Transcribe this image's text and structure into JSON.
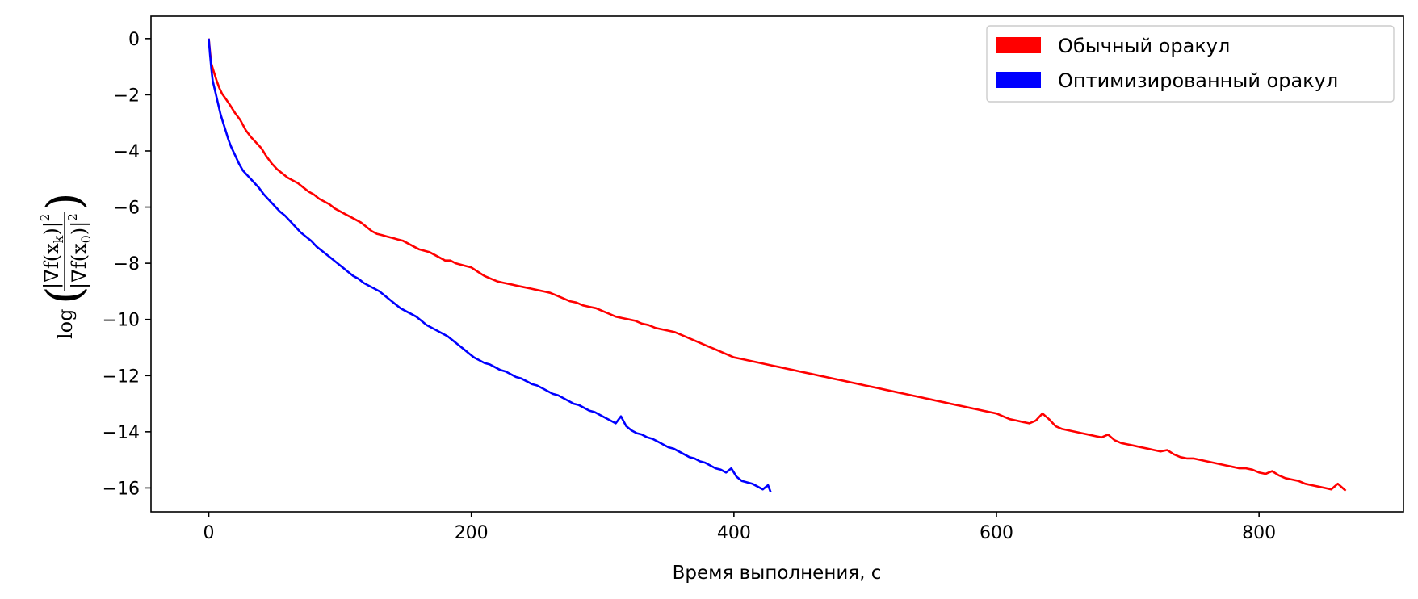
{
  "chart_data": {
    "type": "line",
    "xlabel": "Время выполнения, с",
    "ylabel": "log(|∇f(x_k)|² / |∇f(x_0)|²)",
    "ylabel_parts": {
      "log": "log",
      "numerator": "|∇f(x",
      "numerator_sub": "k",
      "numerator_end": ")|",
      "denominator": "|∇f(x",
      "denominator_sub": "0",
      "denominator_end": ")|",
      "power": "2"
    },
    "xlim": [
      -44,
      910
    ],
    "ylim": [
      -16.85,
      0.8
    ],
    "x_ticks": [
      0,
      200,
      400,
      600,
      800
    ],
    "x_tick_labels": [
      "0",
      "200",
      "400",
      "600",
      "800"
    ],
    "y_ticks": [
      0,
      -2,
      -4,
      -6,
      -8,
      -10,
      -12,
      -14,
      -16
    ],
    "y_tick_labels": [
      "0",
      "−2",
      "−4",
      "−6",
      "−8",
      "−10",
      "−12",
      "−14",
      "−16"
    ],
    "grid": false,
    "legend_position": "top-right",
    "series": [
      {
        "name": "Обычный оракул",
        "color": "#ff0000",
        "points": [
          [
            0,
            0
          ],
          [
            1,
            -0.5
          ],
          [
            2,
            -0.9
          ],
          [
            4,
            -1.2
          ],
          [
            6,
            -1.5
          ],
          [
            8,
            -1.75
          ],
          [
            10,
            -1.95
          ],
          [
            13,
            -2.15
          ],
          [
            16,
            -2.35
          ],
          [
            20,
            -2.65
          ],
          [
            24,
            -2.9
          ],
          [
            28,
            -3.25
          ],
          [
            32,
            -3.5
          ],
          [
            36,
            -3.7
          ],
          [
            40,
            -3.9
          ],
          [
            44,
            -4.2
          ],
          [
            48,
            -4.45
          ],
          [
            52,
            -4.65
          ],
          [
            56,
            -4.8
          ],
          [
            60,
            -4.95
          ],
          [
            64,
            -5.05
          ],
          [
            68,
            -5.15
          ],
          [
            72,
            -5.3
          ],
          [
            76,
            -5.45
          ],
          [
            80,
            -5.55
          ],
          [
            84,
            -5.7
          ],
          [
            88,
            -5.8
          ],
          [
            92,
            -5.9
          ],
          [
            96,
            -6.05
          ],
          [
            100,
            -6.15
          ],
          [
            104,
            -6.25
          ],
          [
            108,
            -6.35
          ],
          [
            112,
            -6.45
          ],
          [
            116,
            -6.55
          ],
          [
            120,
            -6.7
          ],
          [
            124,
            -6.85
          ],
          [
            128,
            -6.95
          ],
          [
            132,
            -7.0
          ],
          [
            136,
            -7.05
          ],
          [
            140,
            -7.1
          ],
          [
            144,
            -7.15
          ],
          [
            148,
            -7.2
          ],
          [
            152,
            -7.3
          ],
          [
            156,
            -7.4
          ],
          [
            160,
            -7.5
          ],
          [
            164,
            -7.55
          ],
          [
            168,
            -7.6
          ],
          [
            172,
            -7.7
          ],
          [
            176,
            -7.8
          ],
          [
            180,
            -7.9
          ],
          [
            184,
            -7.9
          ],
          [
            188,
            -8.0
          ],
          [
            192,
            -8.05
          ],
          [
            196,
            -8.1
          ],
          [
            200,
            -8.15
          ],
          [
            205,
            -8.3
          ],
          [
            210,
            -8.45
          ],
          [
            215,
            -8.55
          ],
          [
            220,
            -8.65
          ],
          [
            225,
            -8.7
          ],
          [
            230,
            -8.75
          ],
          [
            235,
            -8.8
          ],
          [
            240,
            -8.85
          ],
          [
            245,
            -8.9
          ],
          [
            250,
            -8.95
          ],
          [
            255,
            -9.0
          ],
          [
            260,
            -9.05
          ],
          [
            265,
            -9.15
          ],
          [
            270,
            -9.25
          ],
          [
            275,
            -9.35
          ],
          [
            280,
            -9.4
          ],
          [
            285,
            -9.5
          ],
          [
            290,
            -9.55
          ],
          [
            295,
            -9.6
          ],
          [
            300,
            -9.7
          ],
          [
            305,
            -9.8
          ],
          [
            310,
            -9.9
          ],
          [
            315,
            -9.95
          ],
          [
            320,
            -10.0
          ],
          [
            325,
            -10.05
          ],
          [
            330,
            -10.15
          ],
          [
            335,
            -10.2
          ],
          [
            340,
            -10.3
          ],
          [
            345,
            -10.35
          ],
          [
            350,
            -10.4
          ],
          [
            355,
            -10.45
          ],
          [
            360,
            -10.55
          ],
          [
            365,
            -10.65
          ],
          [
            370,
            -10.75
          ],
          [
            375,
            -10.85
          ],
          [
            380,
            -10.95
          ],
          [
            385,
            -11.05
          ],
          [
            390,
            -11.15
          ],
          [
            395,
            -11.25
          ],
          [
            400,
            -11.35
          ],
          [
            405,
            -11.4
          ],
          [
            410,
            -11.45
          ],
          [
            415,
            -11.5
          ],
          [
            420,
            -11.55
          ],
          [
            425,
            -11.6
          ],
          [
            430,
            -11.65
          ],
          [
            435,
            -11.7
          ],
          [
            440,
            -11.75
          ],
          [
            445,
            -11.8
          ],
          [
            450,
            -11.85
          ],
          [
            455,
            -11.9
          ],
          [
            460,
            -11.95
          ],
          [
            465,
            -12.0
          ],
          [
            470,
            -12.05
          ],
          [
            475,
            -12.1
          ],
          [
            480,
            -12.15
          ],
          [
            485,
            -12.2
          ],
          [
            490,
            -12.25
          ],
          [
            495,
            -12.3
          ],
          [
            500,
            -12.35
          ],
          [
            505,
            -12.4
          ],
          [
            510,
            -12.45
          ],
          [
            515,
            -12.5
          ],
          [
            520,
            -12.55
          ],
          [
            525,
            -12.6
          ],
          [
            530,
            -12.65
          ],
          [
            535,
            -12.7
          ],
          [
            540,
            -12.75
          ],
          [
            545,
            -12.8
          ],
          [
            550,
            -12.85
          ],
          [
            555,
            -12.9
          ],
          [
            560,
            -12.95
          ],
          [
            565,
            -13.0
          ],
          [
            570,
            -13.05
          ],
          [
            575,
            -13.1
          ],
          [
            580,
            -13.15
          ],
          [
            585,
            -13.2
          ],
          [
            590,
            -13.25
          ],
          [
            595,
            -13.3
          ],
          [
            600,
            -13.35
          ],
          [
            605,
            -13.45
          ],
          [
            610,
            -13.55
          ],
          [
            615,
            -13.6
          ],
          [
            620,
            -13.65
          ],
          [
            625,
            -13.7
          ],
          [
            630,
            -13.6
          ],
          [
            635,
            -13.35
          ],
          [
            640,
            -13.55
          ],
          [
            645,
            -13.8
          ],
          [
            650,
            -13.9
          ],
          [
            655,
            -13.95
          ],
          [
            660,
            -14.0
          ],
          [
            665,
            -14.05
          ],
          [
            670,
            -14.1
          ],
          [
            675,
            -14.15
          ],
          [
            680,
            -14.2
          ],
          [
            685,
            -14.1
          ],
          [
            690,
            -14.3
          ],
          [
            695,
            -14.4
          ],
          [
            700,
            -14.45
          ],
          [
            705,
            -14.5
          ],
          [
            710,
            -14.55
          ],
          [
            715,
            -14.6
          ],
          [
            720,
            -14.65
          ],
          [
            725,
            -14.7
          ],
          [
            730,
            -14.65
          ],
          [
            735,
            -14.8
          ],
          [
            740,
            -14.9
          ],
          [
            745,
            -14.95
          ],
          [
            750,
            -14.95
          ],
          [
            755,
            -15.0
          ],
          [
            760,
            -15.05
          ],
          [
            765,
            -15.1
          ],
          [
            770,
            -15.15
          ],
          [
            775,
            -15.2
          ],
          [
            780,
            -15.25
          ],
          [
            785,
            -15.3
          ],
          [
            790,
            -15.3
          ],
          [
            795,
            -15.35
          ],
          [
            800,
            -15.45
          ],
          [
            805,
            -15.5
          ],
          [
            810,
            -15.4
          ],
          [
            815,
            -15.55
          ],
          [
            820,
            -15.65
          ],
          [
            825,
            -15.7
          ],
          [
            830,
            -15.75
          ],
          [
            835,
            -15.85
          ],
          [
            840,
            -15.9
          ],
          [
            845,
            -15.95
          ],
          [
            850,
            -16.0
          ],
          [
            855,
            -16.05
          ],
          [
            860,
            -15.85
          ],
          [
            866,
            -16.1
          ]
        ]
      },
      {
        "name": "Оптимизированный оракул",
        "color": "#0000ff",
        "points": [
          [
            0,
            0
          ],
          [
            1,
            -0.6
          ],
          [
            2,
            -1.1
          ],
          [
            3,
            -1.5
          ],
          [
            5,
            -1.9
          ],
          [
            7,
            -2.3
          ],
          [
            9,
            -2.7
          ],
          [
            11,
            -3.0
          ],
          [
            13,
            -3.3
          ],
          [
            15,
            -3.6
          ],
          [
            17,
            -3.85
          ],
          [
            20,
            -4.15
          ],
          [
            23,
            -4.45
          ],
          [
            26,
            -4.7
          ],
          [
            30,
            -4.9
          ],
          [
            34,
            -5.1
          ],
          [
            38,
            -5.3
          ],
          [
            42,
            -5.55
          ],
          [
            46,
            -5.75
          ],
          [
            50,
            -5.95
          ],
          [
            54,
            -6.15
          ],
          [
            58,
            -6.3
          ],
          [
            62,
            -6.5
          ],
          [
            66,
            -6.7
          ],
          [
            70,
            -6.9
          ],
          [
            74,
            -7.05
          ],
          [
            78,
            -7.2
          ],
          [
            82,
            -7.4
          ],
          [
            86,
            -7.55
          ],
          [
            90,
            -7.7
          ],
          [
            94,
            -7.85
          ],
          [
            98,
            -8.0
          ],
          [
            102,
            -8.15
          ],
          [
            106,
            -8.3
          ],
          [
            110,
            -8.45
          ],
          [
            114,
            -8.55
          ],
          [
            118,
            -8.7
          ],
          [
            122,
            -8.8
          ],
          [
            126,
            -8.9
          ],
          [
            130,
            -9.0
          ],
          [
            134,
            -9.15
          ],
          [
            138,
            -9.3
          ],
          [
            142,
            -9.45
          ],
          [
            146,
            -9.6
          ],
          [
            150,
            -9.7
          ],
          [
            154,
            -9.8
          ],
          [
            158,
            -9.9
          ],
          [
            162,
            -10.05
          ],
          [
            166,
            -10.2
          ],
          [
            170,
            -10.3
          ],
          [
            174,
            -10.4
          ],
          [
            178,
            -10.5
          ],
          [
            182,
            -10.6
          ],
          [
            186,
            -10.75
          ],
          [
            190,
            -10.9
          ],
          [
            194,
            -11.05
          ],
          [
            198,
            -11.2
          ],
          [
            202,
            -11.35
          ],
          [
            206,
            -11.45
          ],
          [
            210,
            -11.55
          ],
          [
            214,
            -11.6
          ],
          [
            218,
            -11.7
          ],
          [
            222,
            -11.8
          ],
          [
            226,
            -11.85
          ],
          [
            230,
            -11.95
          ],
          [
            234,
            -12.05
          ],
          [
            238,
            -12.1
          ],
          [
            242,
            -12.2
          ],
          [
            246,
            -12.3
          ],
          [
            250,
            -12.35
          ],
          [
            254,
            -12.45
          ],
          [
            258,
            -12.55
          ],
          [
            262,
            -12.65
          ],
          [
            266,
            -12.7
          ],
          [
            270,
            -12.8
          ],
          [
            274,
            -12.9
          ],
          [
            278,
            -13.0
          ],
          [
            282,
            -13.05
          ],
          [
            286,
            -13.15
          ],
          [
            290,
            -13.25
          ],
          [
            294,
            -13.3
          ],
          [
            298,
            -13.4
          ],
          [
            302,
            -13.5
          ],
          [
            306,
            -13.6
          ],
          [
            310,
            -13.7
          ],
          [
            314,
            -13.45
          ],
          [
            318,
            -13.8
          ],
          [
            322,
            -13.95
          ],
          [
            326,
            -14.05
          ],
          [
            330,
            -14.1
          ],
          [
            334,
            -14.2
          ],
          [
            338,
            -14.25
          ],
          [
            342,
            -14.35
          ],
          [
            346,
            -14.45
          ],
          [
            350,
            -14.55
          ],
          [
            354,
            -14.6
          ],
          [
            358,
            -14.7
          ],
          [
            362,
            -14.8
          ],
          [
            366,
            -14.9
          ],
          [
            370,
            -14.95
          ],
          [
            374,
            -15.05
          ],
          [
            378,
            -15.1
          ],
          [
            382,
            -15.2
          ],
          [
            386,
            -15.3
          ],
          [
            390,
            -15.35
          ],
          [
            394,
            -15.45
          ],
          [
            398,
            -15.3
          ],
          [
            402,
            -15.6
          ],
          [
            406,
            -15.75
          ],
          [
            410,
            -15.8
          ],
          [
            414,
            -15.85
          ],
          [
            418,
            -15.95
          ],
          [
            422,
            -16.05
          ],
          [
            426,
            -15.9
          ],
          [
            428,
            -16.15
          ]
        ]
      }
    ]
  }
}
